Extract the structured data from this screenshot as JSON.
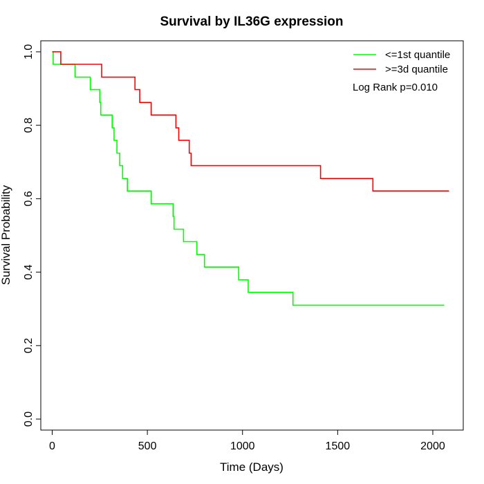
{
  "chart_data": {
    "type": "line",
    "title": "Survival by IL36G expression",
    "xlabel": "Time (Days)",
    "ylabel": "Survival Probability",
    "xlim": [
      -60,
      2160
    ],
    "ylim": [
      -0.03,
      1.03
    ],
    "x_ticks": [
      0,
      500,
      1000,
      1500,
      2000
    ],
    "y_ticks": [
      0.0,
      0.2,
      0.4,
      0.6,
      0.8,
      1.0
    ],
    "x_tick_labels": [
      "0",
      "500",
      "1000",
      "1500",
      "2000"
    ],
    "y_tick_labels": [
      "0.0",
      "0.2",
      "0.4",
      "0.6",
      "0.8",
      "1.0"
    ],
    "grid": false,
    "legend_position": "top-right",
    "annotation": "Log Rank p=0.010",
    "series": [
      {
        "name": "<=1st quantile",
        "color": "#00ff00",
        "x": [
          0,
          5,
          120,
          200,
          250,
          255,
          315,
          325,
          340,
          355,
          370,
          395,
          520,
          635,
          640,
          650,
          690,
          760,
          800,
          980,
          1030,
          1265,
          2060
        ],
        "y": [
          1.0,
          0.966,
          0.931,
          0.897,
          0.862,
          0.828,
          0.793,
          0.759,
          0.724,
          0.69,
          0.655,
          0.621,
          0.586,
          0.552,
          0.517,
          0.517,
          0.483,
          0.448,
          0.414,
          0.379,
          0.345,
          0.31,
          0.31
        ]
      },
      {
        "name": ">=3d quantile",
        "color": "#ff0000",
        "x": [
          0,
          45,
          260,
          435,
          460,
          520,
          650,
          665,
          720,
          730,
          1410,
          1685,
          2085
        ],
        "y": [
          1.0,
          0.966,
          0.931,
          0.897,
          0.862,
          0.828,
          0.793,
          0.759,
          0.724,
          0.69,
          0.655,
          0.621,
          0.621
        ]
      }
    ]
  }
}
